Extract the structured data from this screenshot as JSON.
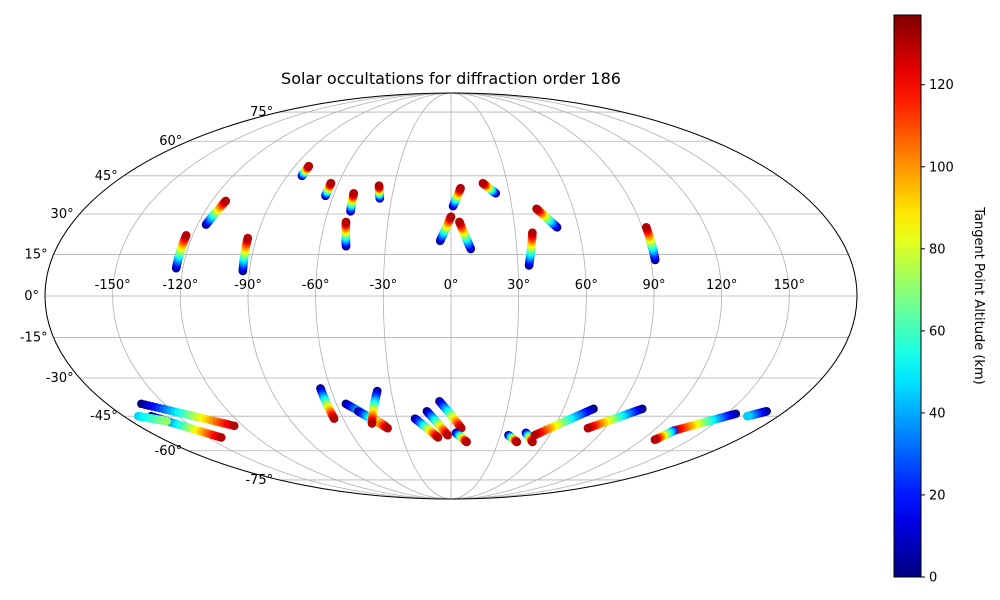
{
  "chart_data": {
    "type": "scatter",
    "projection": "mollweide",
    "title": "Solar occultations for diffraction order 186",
    "longitude_ticks": [
      "-150°",
      "-120°",
      "-90°",
      "-60°",
      "-30°",
      "0°",
      "30°",
      "60°",
      "90°",
      "120°",
      "150°"
    ],
    "latitude_ticks": [
      "-75°",
      "-60°",
      "-45°",
      "-30°",
      "-15°",
      "0°",
      "15°",
      "30°",
      "45°",
      "60°",
      "75°"
    ],
    "longitude_values": [
      -150,
      -120,
      -90,
      -60,
      -30,
      0,
      30,
      60,
      90,
      120,
      150
    ],
    "latitude_values": [
      -75,
      -60,
      -45,
      -30,
      -15,
      0,
      15,
      30,
      45,
      60,
      75
    ],
    "grid": true,
    "colorbar": {
      "label": "Tangent Point Altitude (km)",
      "colormap": "jet",
      "range": [
        0,
        137
      ],
      "ticks": [
        "0",
        "20",
        "40",
        "60",
        "80",
        "100",
        "120"
      ],
      "tick_values": [
        0,
        20,
        40,
        60,
        80,
        100,
        120
      ]
    },
    "tracks": [
      {
        "lon_start": -123,
        "lat_start": 10,
        "lon_end": -123,
        "lat_end": 22,
        "alt_start": 0,
        "alt_end": 130
      },
      {
        "lon_start": -116,
        "lat_start": 26,
        "lon_end": -113,
        "lat_end": 35,
        "alt_start": 0,
        "alt_end": 130
      },
      {
        "lon_start": -93,
        "lat_start": 9,
        "lon_end": -94,
        "lat_end": 21,
        "alt_start": 0,
        "alt_end": 130
      },
      {
        "lon_start": -82,
        "lat_start": 45,
        "lon_end": -82,
        "lat_end": 49,
        "alt_start": 0,
        "alt_end": 130
      },
      {
        "lon_start": -64,
        "lat_start": 37,
        "lon_end": -64,
        "lat_end": 42,
        "alt_start": 0,
        "alt_end": 130
      },
      {
        "lon_start": -49,
        "lat_start": 31,
        "lon_end": -50,
        "lat_end": 38,
        "alt_start": 0,
        "alt_end": 130
      },
      {
        "lon_start": -48,
        "lat_start": 18,
        "lon_end": -50,
        "lat_end": 27,
        "alt_start": 0,
        "alt_end": 130
      },
      {
        "lon_start": -36,
        "lat_start": 36,
        "lon_end": -38,
        "lat_end": 41,
        "alt_start": 0,
        "alt_end": 130
      },
      {
        "lon_start": -5,
        "lat_start": 20,
        "lon_end": 0,
        "lat_end": 29,
        "alt_start": 0,
        "alt_end": 130
      },
      {
        "lon_start": 1,
        "lat_start": 33,
        "lon_end": 5,
        "lat_end": 40,
        "alt_start": 0,
        "alt_end": 130
      },
      {
        "lon_start": 9,
        "lat_start": 17,
        "lon_end": 4,
        "lat_end": 27,
        "alt_start": 0,
        "alt_end": 130
      },
      {
        "lon_start": 23,
        "lat_start": 38,
        "lon_end": 17,
        "lat_end": 42,
        "alt_start": 0,
        "alt_end": 130
      },
      {
        "lon_start": 35,
        "lat_start": 11,
        "lon_end": 38,
        "lat_end": 23,
        "alt_start": 0,
        "alt_end": 130
      },
      {
        "lon_start": 50,
        "lat_start": 25,
        "lon_end": 42,
        "lat_end": 32,
        "alt_start": 0,
        "alt_end": 130
      },
      {
        "lon_start": 92,
        "lat_start": 13,
        "lon_end": 92,
        "lat_end": 25,
        "alt_start": 0,
        "alt_end": 130
      },
      {
        "lon_start": -165,
        "lat_start": -45,
        "lon_end": -142,
        "lat_end": -54,
        "alt_start": 0,
        "alt_end": 130
      },
      {
        "lon_start": -162,
        "lat_start": -40,
        "lon_end": -125,
        "lat_end": -49,
        "alt_start": 0,
        "alt_end": 130
      },
      {
        "lon_start": -172,
        "lat_start": -45,
        "lon_end": -160,
        "lat_end": -47,
        "alt_start": 45,
        "alt_end": 70
      },
      {
        "lon_start": -65,
        "lat_start": -34,
        "lon_end": -65,
        "lat_end": -46,
        "alt_start": 0,
        "alt_end": 130
      },
      {
        "lon_start": -55,
        "lat_start": -40,
        "lon_end": -38,
        "lat_end": -49,
        "alt_start": 0,
        "alt_end": 130
      },
      {
        "lon_start": -50,
        "lat_start": -43,
        "lon_end": -37,
        "lat_end": -50,
        "alt_start": 0,
        "alt_end": 130
      },
      {
        "lon_start": -37,
        "lat_start": -35,
        "lon_end": -45,
        "lat_end": -48,
        "alt_start": 0,
        "alt_end": 130
      },
      {
        "lon_start": -20,
        "lat_start": -46,
        "lon_end": -8,
        "lat_end": -54,
        "alt_start": 0,
        "alt_end": 130
      },
      {
        "lon_start": -13,
        "lat_start": -43,
        "lon_end": -2,
        "lat_end": -53,
        "alt_start": 0,
        "alt_end": 130
      },
      {
        "lon_start": -6,
        "lat_start": -39,
        "lon_end": 6,
        "lat_end": -50,
        "alt_start": 0,
        "alt_end": 130
      },
      {
        "lon_start": 3,
        "lat_start": -52,
        "lon_end": 10,
        "lat_end": -56,
        "alt_start": 0,
        "alt_end": 130
      },
      {
        "lon_start": 35,
        "lat_start": -53,
        "lon_end": 42,
        "lat_end": -56,
        "alt_start": 0,
        "alt_end": 130
      },
      {
        "lon_start": 45,
        "lat_start": -52,
        "lon_end": 52,
        "lat_end": -56,
        "alt_start": 0,
        "alt_end": 130
      },
      {
        "lon_start": 76,
        "lat_start": -42,
        "lon_end": 51,
        "lat_end": -53,
        "alt_start": 0,
        "alt_end": 130
      },
      {
        "lon_start": 102,
        "lat_start": -42,
        "lon_end": 80,
        "lat_end": -50,
        "alt_start": 0,
        "alt_end": 130
      },
      {
        "lon_start": 155,
        "lat_start": -44,
        "lon_end": 132,
        "lat_end": -51,
        "alt_start": 0,
        "alt_end": 130
      },
      {
        "lon_start": 132,
        "lat_start": -51,
        "lon_end": 128,
        "lat_end": -55,
        "alt_start": 20,
        "alt_end": 130
      },
      {
        "lon_start": 170,
        "lat_start": -43,
        "lon_end": 163,
        "lat_end": -45,
        "alt_start": 0,
        "alt_end": 45
      }
    ]
  }
}
